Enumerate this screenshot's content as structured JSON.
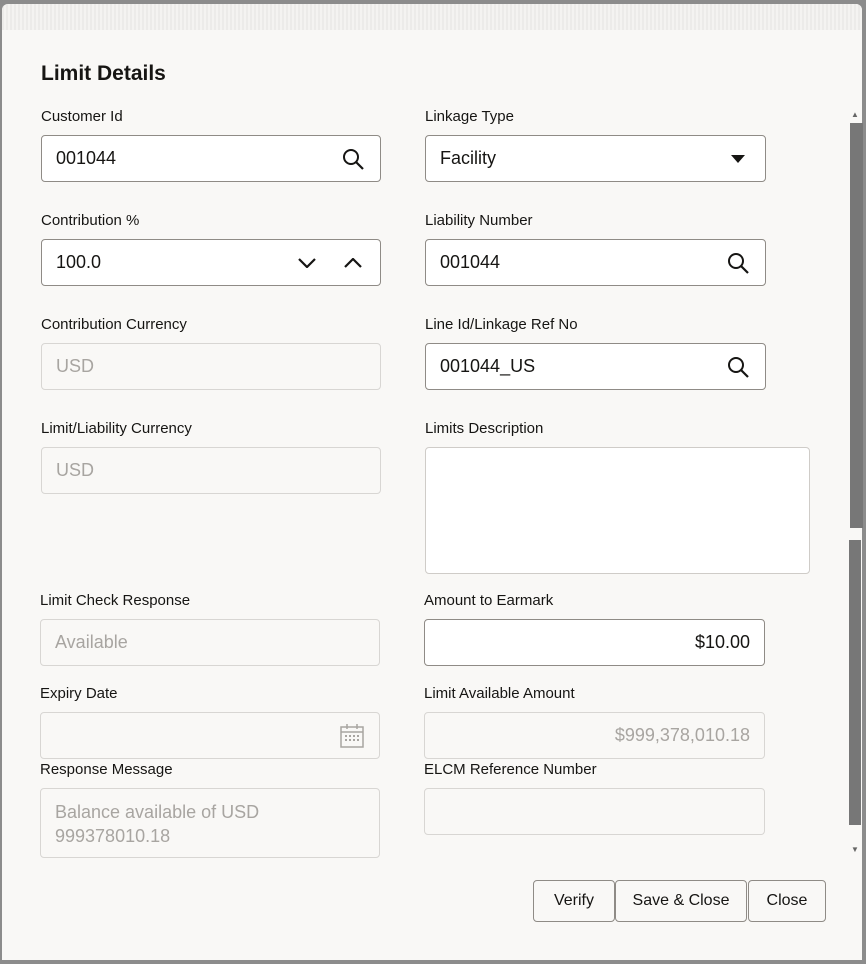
{
  "dialog": {
    "title": "Limit Details"
  },
  "fields": {
    "customer_id": {
      "label": "Customer Id",
      "value": "001044",
      "icon": "search-icon"
    },
    "linkage_type": {
      "label": "Linkage Type",
      "value": "Facility",
      "icon": "caret-down-icon"
    },
    "contribution_pct": {
      "label": "Contribution %",
      "value": "100.0"
    },
    "liability_number": {
      "label": "Liability Number",
      "value": "001044",
      "icon": "search-icon"
    },
    "contribution_currency": {
      "label": "Contribution Currency",
      "value": "USD"
    },
    "line_id": {
      "label": "Line Id/Linkage Ref No",
      "value": "001044_US",
      "icon": "search-icon"
    },
    "limit_currency": {
      "label": "Limit/Liability Currency",
      "value": "USD"
    },
    "limits_description": {
      "label": "Limits Description",
      "value": ""
    },
    "limit_check_response": {
      "label": "Limit Check Response",
      "value": "Available"
    },
    "amount_to_earmark": {
      "label": "Amount to Earmark",
      "value": "$10.00"
    },
    "expiry_date": {
      "label": "Expiry Date",
      "value": "",
      "icon": "calendar-icon"
    },
    "limit_available_amount": {
      "label": "Limit Available Amount",
      "value": "$999,378,010.18"
    },
    "response_message": {
      "label": "Response Message",
      "value": "Balance available of  USD 999378010.18"
    },
    "elcm_reference": {
      "label": "ELCM Reference Number",
      "value": ""
    }
  },
  "buttons": {
    "verify": "Verify",
    "save_close": "Save & Close",
    "close": "Close"
  }
}
